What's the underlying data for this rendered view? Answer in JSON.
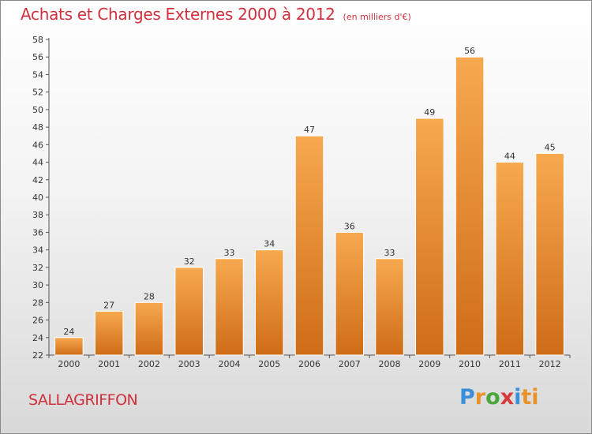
{
  "header": {
    "title": "Achats et Charges Externes 2000 à 2012",
    "unit_note": "(en milliers d'€)"
  },
  "footer": {
    "commune": "SALLAGRIFFON",
    "logo_parts": [
      "P",
      "r",
      "o",
      "x",
      "i",
      "ti"
    ]
  },
  "colors": {
    "title": "#d0303d",
    "bar_top": "#f7a94f",
    "bar_bottom": "#cf6c17",
    "bar_edge": "#ffffff"
  },
  "chart_data": {
    "type": "bar",
    "categories": [
      "2000",
      "2001",
      "2002",
      "2003",
      "2004",
      "2005",
      "2006",
      "2007",
      "2008",
      "2009",
      "2010",
      "2011",
      "2012"
    ],
    "values": [
      24,
      27,
      28,
      32,
      33,
      34,
      47,
      36,
      33,
      49,
      56,
      44,
      45
    ],
    "data_labels": [
      "24",
      "27",
      "28",
      "32",
      "33",
      "34",
      "47",
      "36",
      "33",
      "49",
      "56",
      "44",
      "45"
    ],
    "ylim": [
      22,
      58
    ],
    "yticks": [
      "22",
      "24",
      "26",
      "28",
      "30",
      "32",
      "34",
      "36",
      "38",
      "40",
      "42",
      "44",
      "46",
      "48",
      "50",
      "52",
      "54",
      "56",
      "58"
    ],
    "grid": false,
    "legend": "none"
  }
}
